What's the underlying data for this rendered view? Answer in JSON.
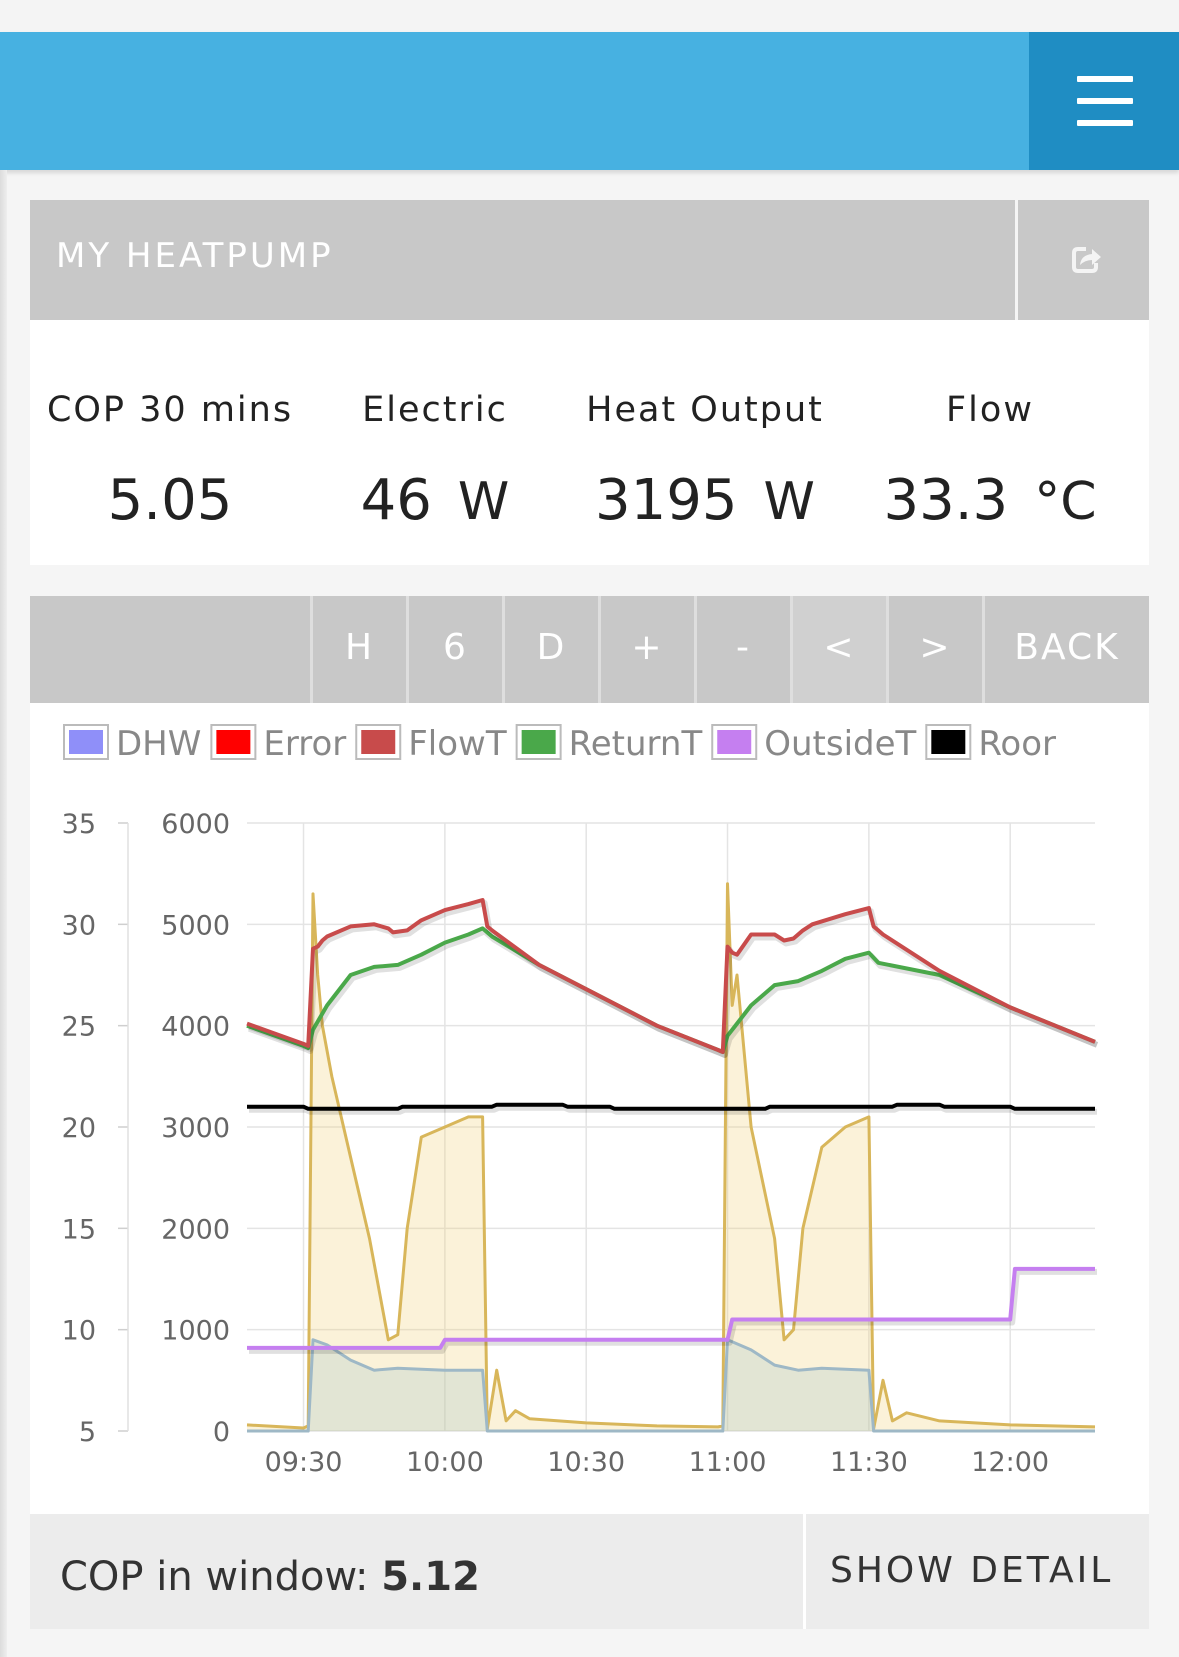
{
  "app": {
    "menu_icon": "hamburger-menu-icon"
  },
  "panel": {
    "title": "MY HEATPUMP",
    "external_icon": "external-link-icon"
  },
  "stats": [
    {
      "label": "COP 30 mins",
      "value": "5.05",
      "unit": ""
    },
    {
      "label": "Electric",
      "value": "46",
      "unit": "W"
    },
    {
      "label": "Heat Output",
      "value": "3195",
      "unit": "W"
    },
    {
      "label": "Flow",
      "value": "33.3",
      "unit": "°C"
    }
  ],
  "toolbar": {
    "buttons": [
      "H",
      "6",
      "D",
      "+",
      "-",
      "<",
      ">",
      "BACK"
    ]
  },
  "footer": {
    "cop_label": "COP in window:",
    "cop_value": "5.12",
    "show_detail": "SHOW DETAIL"
  },
  "chart_data": {
    "type": "line",
    "legend": [
      {
        "name": "DHW",
        "color": "#8f8ff9"
      },
      {
        "name": "Error",
        "color": "#ff0000"
      },
      {
        "name": "FlowT",
        "color": "#c84b4b"
      },
      {
        "name": "ReturnT",
        "color": "#4aa84a"
      },
      {
        "name": "OutsideT",
        "color": "#c57ff0"
      },
      {
        "name": "Roor",
        "color": "#000000"
      }
    ],
    "legend_position": "top",
    "grid": true,
    "y_left": {
      "ticks": [
        "35",
        "30",
        "25",
        "20",
        "15",
        "10",
        "5"
      ],
      "range": [
        5,
        35
      ]
    },
    "y_right": {
      "ticks": [
        "6000",
        "5000",
        "4000",
        "3000",
        "2000",
        "1000",
        "0"
      ],
      "range": [
        0,
        6000
      ]
    },
    "x_ticks": [
      "09:30",
      "10:00",
      "10:30",
      "11:00",
      "11:30",
      "12:00"
    ],
    "x_range": [
      "09:18",
      "12:18"
    ],
    "series": [
      {
        "name": "FlowT",
        "axis": "left",
        "color": "#c84b4b",
        "points": [
          [
            "09:18",
            25.1
          ],
          [
            "09:30",
            24.1
          ],
          [
            "09:31",
            24.0
          ],
          [
            "09:32",
            28.8
          ],
          [
            "09:33",
            28.9
          ],
          [
            "09:34",
            29.2
          ],
          [
            "09:35",
            29.4
          ],
          [
            "09:40",
            29.9
          ],
          [
            "09:45",
            30.0
          ],
          [
            "09:48",
            29.8
          ],
          [
            "09:49",
            29.6
          ],
          [
            "09:52",
            29.7
          ],
          [
            "09:55",
            30.2
          ],
          [
            "10:00",
            30.7
          ],
          [
            "10:05",
            31.0
          ],
          [
            "10:08",
            31.2
          ],
          [
            "10:09",
            29.9
          ],
          [
            "10:10",
            29.7
          ],
          [
            "10:20",
            28.0
          ],
          [
            "10:30",
            26.8
          ],
          [
            "10:45",
            25.0
          ],
          [
            "10:58",
            23.8
          ],
          [
            "10:59",
            23.7
          ],
          [
            "11:00",
            28.9
          ],
          [
            "11:01",
            28.6
          ],
          [
            "11:02",
            28.5
          ],
          [
            "11:05",
            29.5
          ],
          [
            "11:10",
            29.5
          ],
          [
            "11:12",
            29.2
          ],
          [
            "11:14",
            29.3
          ],
          [
            "11:16",
            29.7
          ],
          [
            "11:18",
            30.0
          ],
          [
            "11:25",
            30.5
          ],
          [
            "11:30",
            30.8
          ],
          [
            "11:31",
            29.9
          ],
          [
            "11:33",
            29.5
          ],
          [
            "11:45",
            27.7
          ],
          [
            "12:00",
            25.9
          ],
          [
            "12:18",
            24.2
          ]
        ]
      },
      {
        "name": "ReturnT",
        "axis": "left",
        "color": "#4aa84a",
        "points": [
          [
            "09:18",
            25.0
          ],
          [
            "09:30",
            24.0
          ],
          [
            "09:31",
            23.9
          ],
          [
            "09:32",
            24.8
          ],
          [
            "09:35",
            26.0
          ],
          [
            "09:40",
            27.5
          ],
          [
            "09:45",
            27.9
          ],
          [
            "09:50",
            28.0
          ],
          [
            "09:55",
            28.5
          ],
          [
            "10:00",
            29.1
          ],
          [
            "10:05",
            29.5
          ],
          [
            "10:08",
            29.8
          ],
          [
            "10:10",
            29.4
          ],
          [
            "10:20",
            28.0
          ],
          [
            "10:30",
            26.8
          ],
          [
            "10:45",
            25.0
          ],
          [
            "10:58",
            23.8
          ],
          [
            "10:59",
            23.7
          ],
          [
            "11:00",
            24.5
          ],
          [
            "11:02",
            25.1
          ],
          [
            "11:05",
            26.0
          ],
          [
            "11:10",
            27.0
          ],
          [
            "11:15",
            27.2
          ],
          [
            "11:20",
            27.7
          ],
          [
            "11:25",
            28.3
          ],
          [
            "11:30",
            28.6
          ],
          [
            "11:32",
            28.1
          ],
          [
            "11:45",
            27.5
          ],
          [
            "12:00",
            25.9
          ],
          [
            "12:18",
            24.2
          ]
        ]
      },
      {
        "name": "Roor",
        "axis": "left",
        "color": "#000000",
        "points": [
          [
            "09:18",
            21.0
          ],
          [
            "09:30",
            21.0
          ],
          [
            "09:31",
            20.9
          ],
          [
            "09:50",
            20.9
          ],
          [
            "09:51",
            21.0
          ],
          [
            "10:10",
            21.0
          ],
          [
            "10:11",
            21.1
          ],
          [
            "10:25",
            21.1
          ],
          [
            "10:26",
            21.0
          ],
          [
            "10:35",
            21.0
          ],
          [
            "10:36",
            20.9
          ],
          [
            "11:08",
            20.9
          ],
          [
            "11:09",
            21.0
          ],
          [
            "11:35",
            21.0
          ],
          [
            "11:36",
            21.1
          ],
          [
            "11:45",
            21.1
          ],
          [
            "11:46",
            21.0
          ],
          [
            "12:00",
            21.0
          ],
          [
            "12:01",
            20.9
          ],
          [
            "12:18",
            20.9
          ]
        ]
      },
      {
        "name": "OutsideT",
        "axis": "left",
        "color": "#c57ff0",
        "points": [
          [
            "09:18",
            9.1
          ],
          [
            "09:59",
            9.1
          ],
          [
            "10:00",
            9.5
          ],
          [
            "11:00",
            9.5
          ],
          [
            "11:01",
            10.5
          ],
          [
            "12:00",
            10.5
          ],
          [
            "12:01",
            13.0
          ],
          [
            "12:18",
            13.0
          ]
        ]
      },
      {
        "name": "Heat",
        "axis": "right",
        "color": "#d8b65a",
        "fill": true,
        "points": [
          [
            "09:18",
            60
          ],
          [
            "09:30",
            30
          ],
          [
            "09:31",
            50
          ],
          [
            "09:32",
            5300
          ],
          [
            "09:33",
            4500
          ],
          [
            "09:34",
            4000
          ],
          [
            "09:36",
            3500
          ],
          [
            "09:40",
            2700
          ],
          [
            "09:44",
            1900
          ],
          [
            "09:48",
            900
          ],
          [
            "09:50",
            950
          ],
          [
            "09:52",
            2000
          ],
          [
            "09:55",
            2900
          ],
          [
            "10:00",
            3000
          ],
          [
            "10:05",
            3100
          ],
          [
            "10:08",
            3100
          ],
          [
            "10:09",
            20
          ],
          [
            "10:11",
            600
          ],
          [
            "10:13",
            100
          ],
          [
            "10:15",
            200
          ],
          [
            "10:18",
            120
          ],
          [
            "10:30",
            80
          ],
          [
            "10:45",
            50
          ],
          [
            "10:58",
            40
          ],
          [
            "10:59",
            50
          ],
          [
            "11:00",
            5400
          ],
          [
            "11:01",
            4200
          ],
          [
            "11:02",
            4500
          ],
          [
            "11:05",
            3000
          ],
          [
            "11:10",
            1900
          ],
          [
            "11:12",
            900
          ],
          [
            "11:14",
            1000
          ],
          [
            "11:16",
            2000
          ],
          [
            "11:20",
            2800
          ],
          [
            "11:25",
            3000
          ],
          [
            "11:30",
            3100
          ],
          [
            "11:31",
            20
          ],
          [
            "11:33",
            500
          ],
          [
            "11:35",
            100
          ],
          [
            "11:38",
            180
          ],
          [
            "11:45",
            100
          ],
          [
            "12:00",
            60
          ],
          [
            "12:18",
            40
          ]
        ]
      },
      {
        "name": "Electric",
        "axis": "right",
        "color": "#9eb8c6",
        "fill": true,
        "points": [
          [
            "09:18",
            0
          ],
          [
            "09:30",
            0
          ],
          [
            "09:31",
            0
          ],
          [
            "09:32",
            900
          ],
          [
            "09:35",
            850
          ],
          [
            "09:40",
            700
          ],
          [
            "09:45",
            600
          ],
          [
            "09:50",
            620
          ],
          [
            "10:00",
            600
          ],
          [
            "10:08",
            600
          ],
          [
            "10:09",
            0
          ],
          [
            "10:58",
            0
          ],
          [
            "10:59",
            0
          ],
          [
            "11:00",
            900
          ],
          [
            "11:05",
            800
          ],
          [
            "11:10",
            650
          ],
          [
            "11:15",
            600
          ],
          [
            "11:20",
            620
          ],
          [
            "11:30",
            600
          ],
          [
            "11:31",
            0
          ],
          [
            "12:18",
            0
          ]
        ]
      }
    ]
  }
}
